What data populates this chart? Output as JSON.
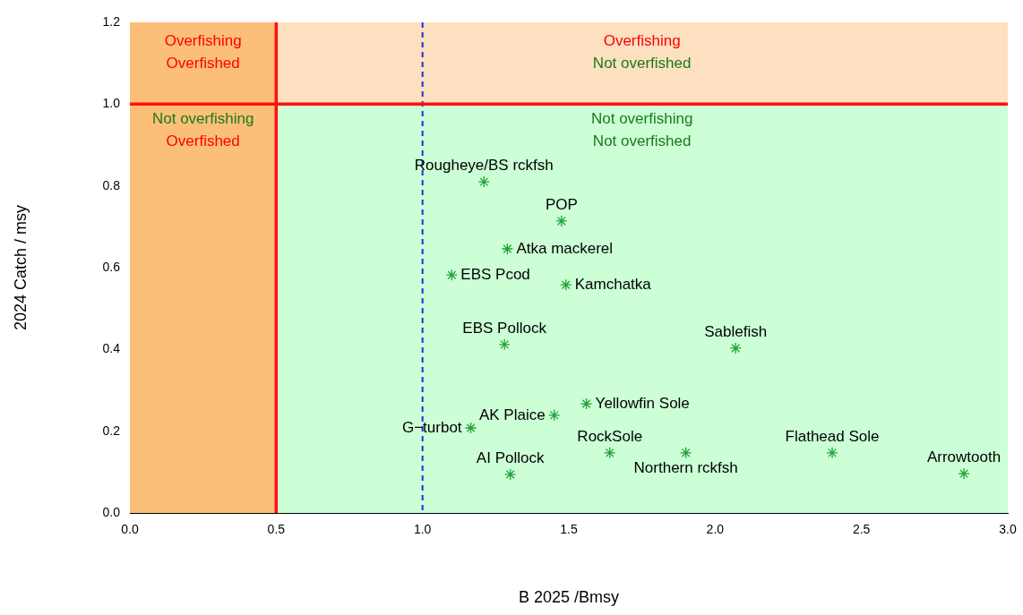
{
  "chart_data": {
    "type": "scatter",
    "xlabel": "B 2025 /Bmsy",
    "ylabel": "2024 Catch / msy",
    "xlim": [
      0,
      3
    ],
    "ylim": [
      0,
      1.2
    ],
    "xticks": [
      {
        "value": 0,
        "label": "0.0"
      },
      {
        "value": 0.5,
        "label": "0.5"
      },
      {
        "value": 1,
        "label": "1.0"
      },
      {
        "value": 1.5,
        "label": "1.5"
      },
      {
        "value": 2,
        "label": "2.0"
      },
      {
        "value": 2.5,
        "label": "2.5"
      },
      {
        "value": 3,
        "label": "3.0"
      }
    ],
    "yticks": [
      {
        "value": 0,
        "label": "0.0"
      },
      {
        "value": 0.2,
        "label": "0.2"
      },
      {
        "value": 0.4,
        "label": "0.4"
      },
      {
        "value": 0.6,
        "label": "0.6"
      },
      {
        "value": 0.8,
        "label": "0.8"
      },
      {
        "value": 1,
        "label": "1.0"
      },
      {
        "value": 1.2,
        "label": "1.2"
      }
    ],
    "grid": false,
    "legend": false,
    "marker": "cross",
    "series": [
      {
        "color": "#22a33a",
        "x": [
          1.21,
          1.475,
          1.29,
          1.1,
          1.49,
          1.28,
          2.07,
          1.56,
          1.45,
          1.165,
          1.64,
          1.9,
          2.4,
          2.85,
          1.3
        ],
        "values": [
          0.81,
          0.714,
          0.646,
          0.582,
          0.558,
          0.412,
          0.403,
          0.267,
          0.239,
          0.208,
          0.147,
          0.147,
          0.147,
          0.096,
          0.094
        ]
      }
    ],
    "bands": [
      {
        "axis": "y",
        "from": 0,
        "to": 1,
        "color": "#ccffd5"
      },
      {
        "axis": "y",
        "from": 1,
        "to": 1.2,
        "color": "#fde0c0"
      },
      {
        "axis": "x",
        "from": 0,
        "to": 0.5,
        "color": "#fbbf78"
      }
    ],
    "ref_lines": [
      {
        "axis": "x",
        "value": 1,
        "color": "#1f2fe0",
        "line_style": "dashed"
      },
      {
        "axis": "x",
        "value": 0.5,
        "color": "#ff1010",
        "line_style": "solid"
      },
      {
        "axis": "y",
        "value": 1,
        "color": "#ff1010",
        "line_style": "solid"
      }
    ],
    "annotations": [
      {
        "text": "Rougheye/BS rckfsh",
        "x": 1.21,
        "y": 0.81
      },
      {
        "text": "POP",
        "x": 1.475,
        "y": 0.714
      },
      {
        "text": "Atka mackerel",
        "x": 1.29,
        "y": 0.646
      },
      {
        "text": "EBS Pcod",
        "x": 1.1,
        "y": 0.582
      },
      {
        "text": "Kamchatka",
        "x": 1.49,
        "y": 0.558
      },
      {
        "text": "EBS Pollock",
        "x": 1.28,
        "y": 0.412
      },
      {
        "text": "Sablefish",
        "x": 2.07,
        "y": 0.403
      },
      {
        "text": "Yellowfin Sole",
        "x": 1.56,
        "y": 0.267
      },
      {
        "text": "AK Plaice",
        "x": 1.45,
        "y": 0.239
      },
      {
        "text": "G−turbot",
        "x": 1.165,
        "y": 0.208
      },
      {
        "text": "RockSole",
        "x": 1.64,
        "y": 0.147
      },
      {
        "text": "Northern rckfsh",
        "x": 1.9,
        "y": 0.147
      },
      {
        "text": "Flathead Sole",
        "x": 2.4,
        "y": 0.147
      },
      {
        "text": "Arrowtooth",
        "x": 2.85,
        "y": 0.096
      },
      {
        "text": "AI Pollock",
        "x": 1.3,
        "y": 0.094
      },
      "Overfishing",
      "Overfished",
      "Overfishing",
      "Not overfished",
      "Not overfishing",
      "Overfished",
      "Not overfishing",
      "Not overfished"
    ]
  }
}
